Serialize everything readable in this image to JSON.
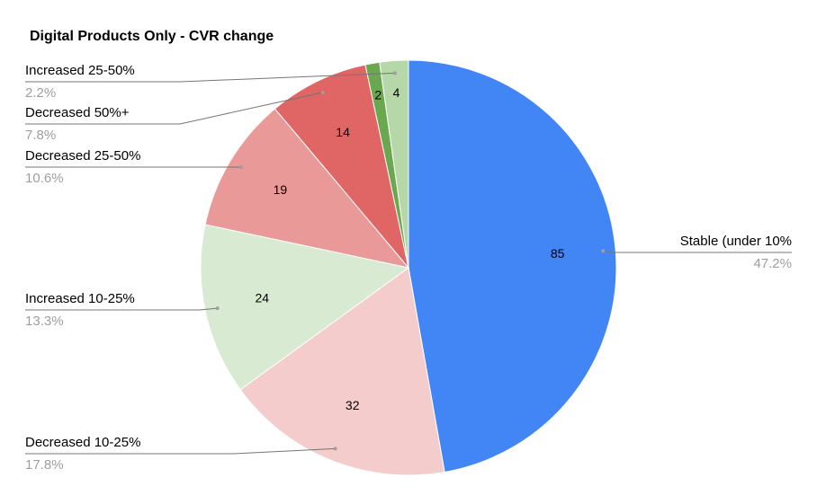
{
  "chart_data": {
    "type": "pie",
    "title": "Digital Products Only - CVR change",
    "categories": [
      "Stable (under 10%",
      "Decreased 10-25%",
      "Increased 10-25%",
      "Decreased 25-50%",
      "Decreased 50%+",
      null,
      "Increased 25-50%"
    ],
    "values": [
      85,
      32,
      24,
      19,
      14,
      2,
      4
    ],
    "percent_labels": [
      "47.2%",
      "17.8%",
      "13.3%",
      "10.6%",
      "7.8%",
      null,
      "2.2%"
    ],
    "colors": [
      "#4285f4",
      "#f4cccc",
      "#d9ead3",
      "#ea9999",
      "#e06666",
      "#6aa84f",
      "#b6d7a8"
    ]
  }
}
